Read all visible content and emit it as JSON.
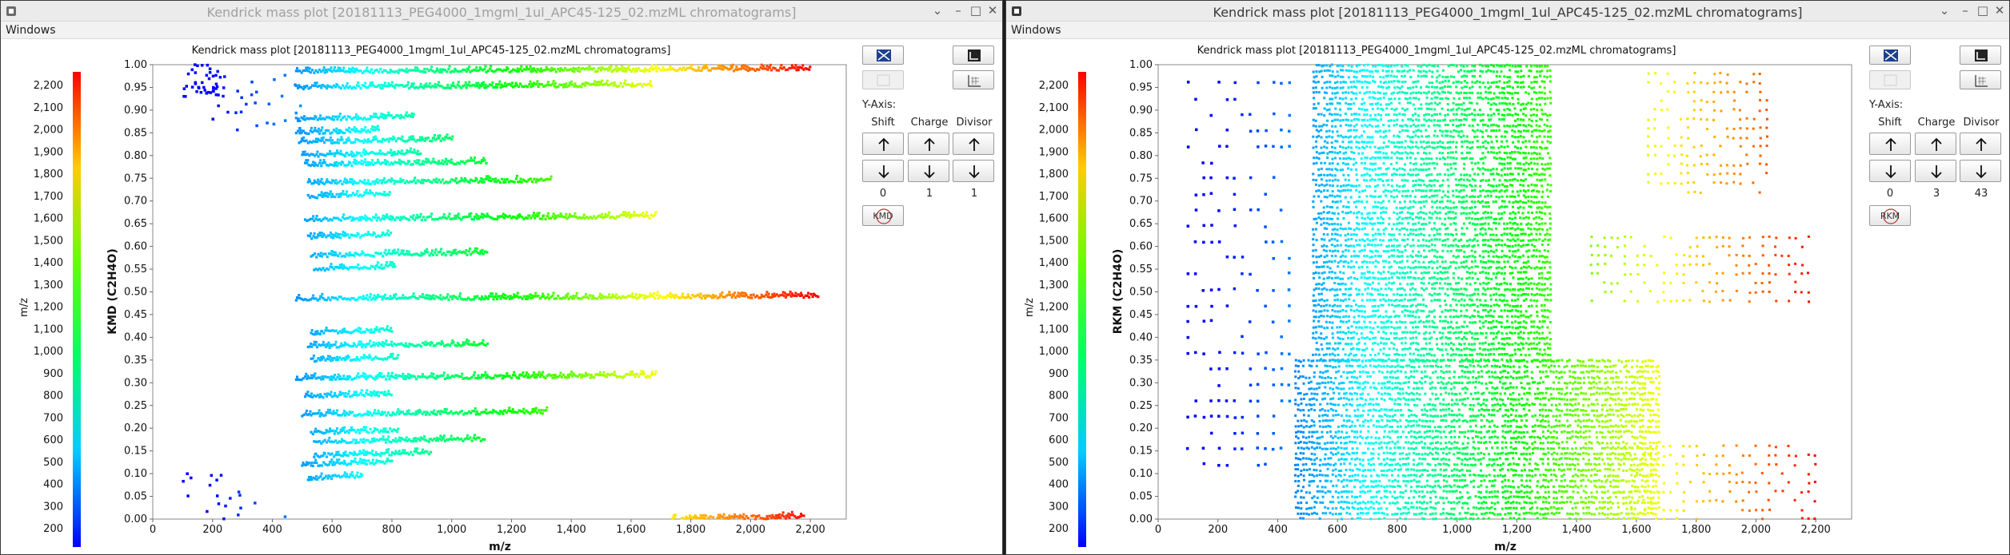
{
  "colors": {
    "title_active": "#3a3a3a",
    "title_inactive": "#a0a0a0",
    "plot_border": "#888888"
  },
  "scale": {
    "label": "m/z",
    "ticks": [
      "200",
      "300",
      "400",
      "500",
      "600",
      "700",
      "800",
      "900",
      "1,000",
      "1,100",
      "1,200",
      "1,300",
      "1,400",
      "1,500",
      "1,600",
      "1,700",
      "1,800",
      "1,900",
      "2,000",
      "2,100",
      "2,200"
    ]
  },
  "windows": [
    {
      "title": "Kendrick mass plot [20181113_PEG4000_1mgml_1ul_APC45-125_02.mzML chromatograms]",
      "active": false,
      "menu": "Windows",
      "y_axis_label": "Y-Axis:",
      "shift_label": "Shift",
      "charge_label": "Charge",
      "divisor_label": "Divisor",
      "shift_value": "0",
      "charge_value": "1",
      "divisor_value": "1",
      "mode_button": "KMD",
      "chart_data": {
        "type": "scatter",
        "title": "Kendrick mass plot [20181113_PEG4000_1mgml_1ul_APC45-125_02.mzML chromatograms]",
        "xlabel": "m/z",
        "ylabel": "KMD (C2H4O)",
        "xlim": [
          0,
          2320
        ],
        "ylim": [
          0,
          1
        ],
        "x_ticks": [
          "0",
          "200",
          "400",
          "600",
          "800",
          "1,000",
          "1,200",
          "1,400",
          "1,600",
          "1,800",
          "2,000",
          "2,200"
        ],
        "y_ticks": [
          "0.00",
          "0.05",
          "0.10",
          "0.15",
          "0.20",
          "0.25",
          "0.30",
          "0.35",
          "0.40",
          "0.45",
          "0.50",
          "0.55",
          "0.60",
          "0.65",
          "0.70",
          "0.75",
          "0.80",
          "0.85",
          "0.90",
          "0.95",
          "1.00"
        ],
        "color_scale": "m/z (200 blue to 2,200 red)",
        "series_bands": [
          {
            "y": 0.985,
            "x": [
              480,
              2200
            ]
          },
          {
            "y": 0.95,
            "x": [
              480,
              1670
            ]
          },
          {
            "y": 0.88,
            "x": [
              480,
              870
            ]
          },
          {
            "y": 0.85,
            "x": [
              480,
              760
            ]
          },
          {
            "y": 0.83,
            "x": [
              490,
              1000
            ]
          },
          {
            "y": 0.8,
            "x": [
              500,
              900
            ]
          },
          {
            "y": 0.78,
            "x": [
              510,
              1120
            ]
          },
          {
            "y": 0.74,
            "x": [
              520,
              1330
            ]
          },
          {
            "y": 0.71,
            "x": [
              520,
              790
            ]
          },
          {
            "y": 0.66,
            "x": [
              510,
              1680
            ]
          },
          {
            "y": 0.62,
            "x": [
              520,
              800
            ]
          },
          {
            "y": 0.58,
            "x": [
              530,
              1120
            ]
          },
          {
            "y": 0.55,
            "x": [
              540,
              810
            ]
          },
          {
            "y": 0.485,
            "x": [
              480,
              2230
            ]
          },
          {
            "y": 0.41,
            "x": [
              530,
              800
            ]
          },
          {
            "y": 0.38,
            "x": [
              520,
              1120
            ]
          },
          {
            "y": 0.35,
            "x": [
              530,
              820
            ]
          },
          {
            "y": 0.31,
            "x": [
              480,
              1680
            ]
          },
          {
            "y": 0.27,
            "x": [
              510,
              800
            ]
          },
          {
            "y": 0.23,
            "x": [
              500,
              1320
            ]
          },
          {
            "y": 0.19,
            "x": [
              530,
              820
            ]
          },
          {
            "y": 0.17,
            "x": [
              540,
              1110
            ]
          },
          {
            "y": 0.14,
            "x": [
              540,
              930
            ]
          },
          {
            "y": 0.12,
            "x": [
              500,
              800
            ]
          },
          {
            "y": 0.09,
            "x": [
              520,
              700
            ]
          },
          {
            "y": 0.0,
            "x": [
              1740,
              2180
            ]
          }
        ]
      }
    },
    {
      "title": "Kendrick mass plot [20181113_PEG4000_1mgml_1ul_APC45-125_02.mzML chromatograms]",
      "active": true,
      "menu": "Windows",
      "y_axis_label": "Y-Axis:",
      "shift_label": "Shift",
      "charge_label": "Charge",
      "divisor_label": "Divisor",
      "shift_value": "0",
      "charge_value": "3",
      "divisor_value": "43",
      "mode_button": "RKM",
      "chart_data": {
        "type": "scatter",
        "title": "Kendrick mass plot [20181113_PEG4000_1mgml_1ul_APC45-125_02.mzML chromatograms]",
        "xlabel": "m/z",
        "ylabel": "RKM (C2H4O)",
        "xlim": [
          0,
          2320
        ],
        "ylim": [
          0,
          1
        ],
        "x_ticks": [
          "0",
          "200",
          "400",
          "600",
          "800",
          "1,000",
          "1,200",
          "1,400",
          "1,600",
          "1,800",
          "2,000",
          "2,200"
        ],
        "y_ticks": [
          "0.00",
          "0.05",
          "0.10",
          "0.15",
          "0.20",
          "0.25",
          "0.30",
          "0.35",
          "0.40",
          "0.45",
          "0.50",
          "0.55",
          "0.60",
          "0.65",
          "0.70",
          "0.75",
          "0.80",
          "0.85",
          "0.90",
          "0.95",
          "1.00"
        ],
        "color_scale": "m/z (200 blue to 2,200 red)",
        "regions": [
          {
            "x": [
              520,
              1320
            ],
            "y": [
              0.35,
              1.0
            ]
          },
          {
            "x": [
              460,
              1680
            ],
            "y": [
              0.0,
              0.35
            ]
          },
          {
            "x": [
              1560,
              2200
            ],
            "y": [
              0.0,
              0.16
            ]
          },
          {
            "x": [
              1450,
              2180
            ],
            "y": [
              0.48,
              0.63
            ]
          },
          {
            "x": [
              1640,
              2050
            ],
            "y": [
              0.72,
              0.99
            ]
          },
          {
            "x": [
              100,
              450
            ],
            "y": [
              0.12,
              0.99
            ]
          }
        ]
      }
    }
  ]
}
